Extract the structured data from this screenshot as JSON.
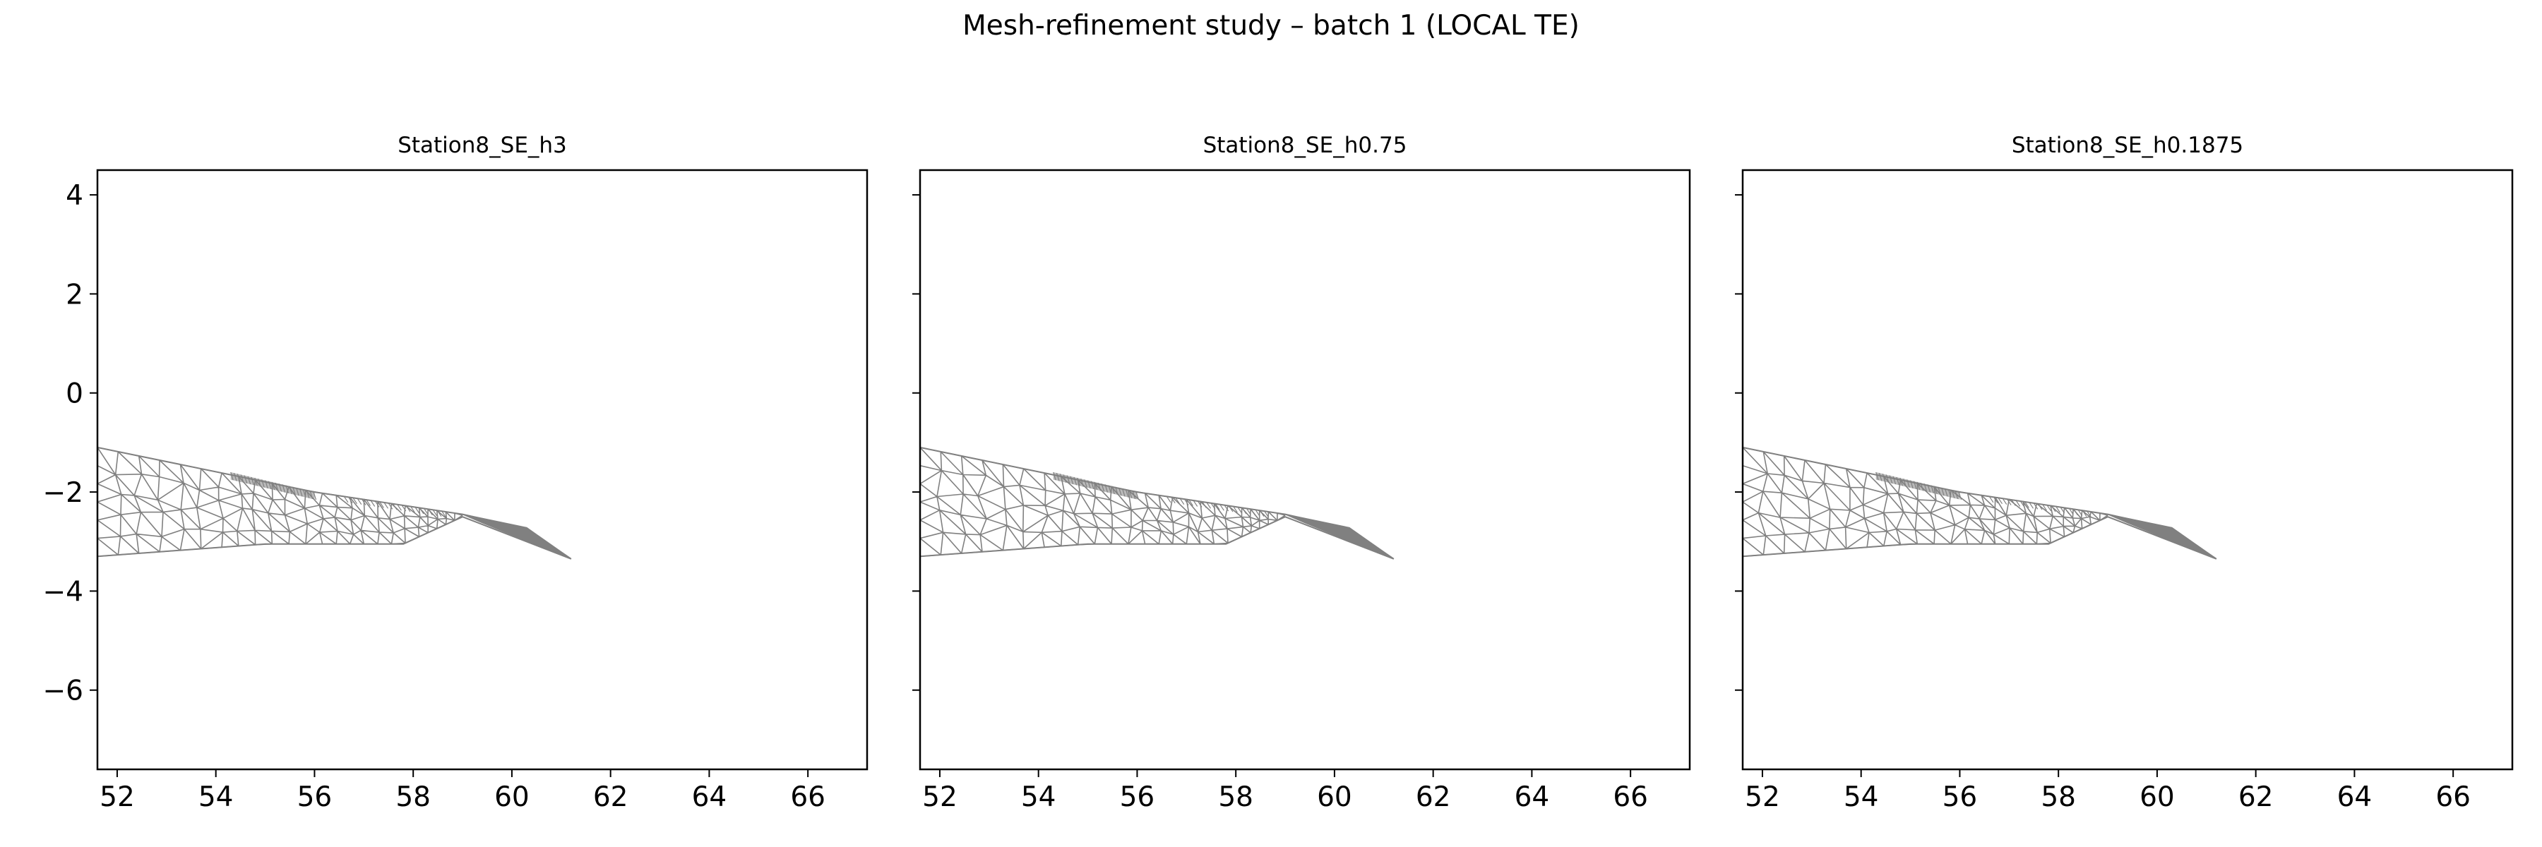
{
  "figure": {
    "suptitle": "Mesh-refinement study – batch 1 (LOCAL TE)"
  },
  "chart_data": [
    {
      "type": "mesh",
      "title": "Station8_SE_h3",
      "xlabel": "",
      "ylabel": "",
      "xlim": [
        51.6,
        67.2
      ],
      "ylim": [
        -7.6,
        4.5
      ],
      "xticks": [
        52,
        54,
        56,
        58,
        60,
        62,
        64,
        66
      ],
      "yticks": [
        4,
        2,
        0,
        -2,
        -4,
        -6
      ],
      "ytick_labels_shown": true,
      "grid": false,
      "mesh_color": "#808080",
      "outline": [
        [
          51.6,
          -1.1
        ],
        [
          56.0,
          -2.0
        ],
        [
          59.0,
          -2.45
        ],
        [
          60.3,
          -2.75
        ],
        [
          61.2,
          -3.35
        ],
        [
          59.0,
          -2.5
        ],
        [
          57.8,
          -3.05
        ],
        [
          55.0,
          -3.05
        ],
        [
          51.6,
          -3.3
        ]
      ],
      "dense_strip": [
        [
          54.3,
          -1.6
        ],
        [
          56.0,
          -2.0
        ],
        [
          56.0,
          -2.15
        ],
        [
          54.3,
          -1.75
        ]
      ],
      "tail_fill": [
        [
          59.0,
          -2.45
        ],
        [
          60.3,
          -2.72
        ],
        [
          61.2,
          -3.35
        ],
        [
          59.4,
          -2.62
        ]
      ]
    },
    {
      "type": "mesh",
      "title": "Station8_SE_h0.75",
      "xlabel": "",
      "ylabel": "",
      "xlim": [
        51.6,
        67.2
      ],
      "ylim": [
        -7.6,
        4.5
      ],
      "xticks": [
        52,
        54,
        56,
        58,
        60,
        62,
        64,
        66
      ],
      "yticks": [
        4,
        2,
        0,
        -2,
        -4,
        -6
      ],
      "ytick_labels_shown": false,
      "grid": false,
      "mesh_color": "#808080",
      "outline": [
        [
          51.6,
          -1.1
        ],
        [
          56.0,
          -2.0
        ],
        [
          59.0,
          -2.45
        ],
        [
          60.3,
          -2.75
        ],
        [
          61.2,
          -3.35
        ],
        [
          59.0,
          -2.5
        ],
        [
          57.8,
          -3.05
        ],
        [
          55.0,
          -3.05
        ],
        [
          51.6,
          -3.3
        ]
      ],
      "dense_strip": [
        [
          54.3,
          -1.6
        ],
        [
          56.0,
          -2.0
        ],
        [
          56.0,
          -2.15
        ],
        [
          54.3,
          -1.75
        ]
      ],
      "tail_fill": [
        [
          59.0,
          -2.45
        ],
        [
          60.3,
          -2.72
        ],
        [
          61.2,
          -3.35
        ],
        [
          59.4,
          -2.62
        ]
      ]
    },
    {
      "type": "mesh",
      "title": "Station8_SE_h0.1875",
      "xlabel": "",
      "ylabel": "",
      "xlim": [
        51.6,
        67.2
      ],
      "ylim": [
        -7.6,
        4.5
      ],
      "xticks": [
        52,
        54,
        56,
        58,
        60,
        62,
        64,
        66
      ],
      "yticks": [
        4,
        2,
        0,
        -2,
        -4,
        -6
      ],
      "ytick_labels_shown": false,
      "grid": false,
      "mesh_color": "#808080",
      "outline": [
        [
          51.6,
          -1.1
        ],
        [
          56.0,
          -2.0
        ],
        [
          59.0,
          -2.45
        ],
        [
          60.3,
          -2.75
        ],
        [
          61.2,
          -3.35
        ],
        [
          59.0,
          -2.5
        ],
        [
          57.8,
          -3.05
        ],
        [
          55.0,
          -3.05
        ],
        [
          51.6,
          -3.3
        ]
      ],
      "dense_strip": [
        [
          54.3,
          -1.6
        ],
        [
          56.0,
          -2.0
        ],
        [
          56.0,
          -2.15
        ],
        [
          54.3,
          -1.75
        ]
      ],
      "tail_fill": [
        [
          59.0,
          -2.45
        ],
        [
          60.3,
          -2.72
        ],
        [
          61.2,
          -3.35
        ],
        [
          59.4,
          -2.62
        ]
      ]
    }
  ]
}
